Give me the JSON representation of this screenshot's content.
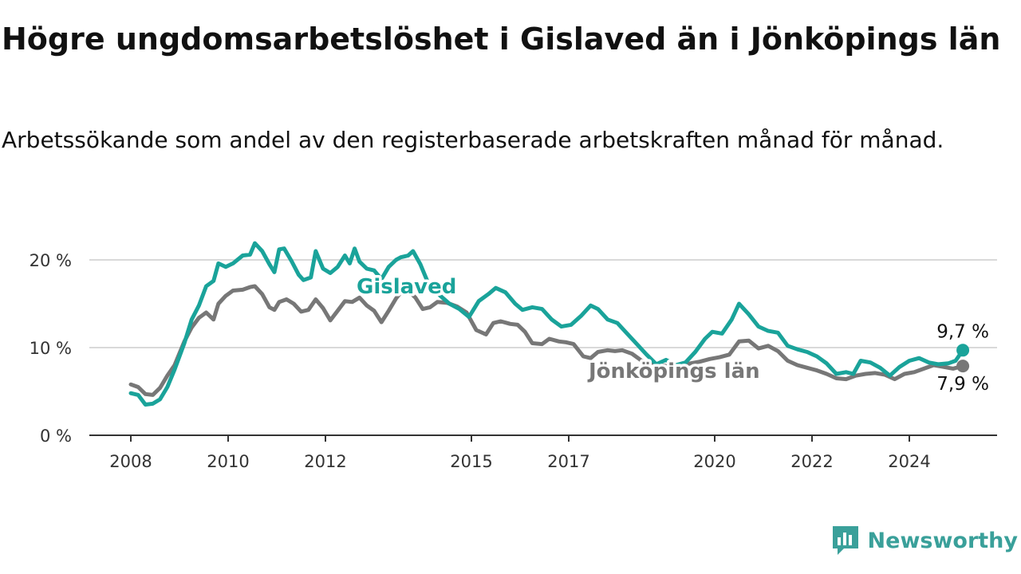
{
  "title": "Högre ungdomsarbetslöshet i Gislaved än i Jönköpings län",
  "subtitle": "Arbetssökande som andel av den registerbaserade arbetskraften månad för månad.",
  "brand": "Newsworthy",
  "colors": {
    "gislaved": "#1aa39a",
    "jonkoping": "#777777",
    "grid": "#d9d9d9",
    "axis": "#333333"
  },
  "chart_data": {
    "type": "line",
    "title": "Högre ungdomsarbetslöshet i Gislaved än i Jönköpings län",
    "subtitle": "Arbetssökande som andel av den registerbaserade arbetskraften månad för månad.",
    "xlabel": "",
    "ylabel": "",
    "ylim": [
      0,
      20
    ],
    "yticks": [
      0,
      10,
      20
    ],
    "ytick_labels": [
      "0 %",
      "10 %",
      "20 %"
    ],
    "xlim": [
      2008,
      2026
    ],
    "xticks": [
      2008,
      2010,
      2012,
      2015,
      2017,
      2020,
      2022,
      2024
    ],
    "xtick_labels": [
      "2008",
      "2010",
      "2012",
      "2015",
      "2017",
      "2020",
      "2022",
      "2024"
    ],
    "grid": true,
    "legend": "inline labels on lines",
    "series": [
      {
        "name": "Gislaved",
        "color": "#1aa39a",
        "end_label": "9,7 %",
        "points": [
          [
            2008.0,
            4.8
          ],
          [
            2008.15,
            4.6
          ],
          [
            2008.3,
            3.5
          ],
          [
            2008.45,
            3.6
          ],
          [
            2008.6,
            4.1
          ],
          [
            2008.75,
            5.5
          ],
          [
            2008.9,
            7.5
          ],
          [
            2009.1,
            10.5
          ],
          [
            2009.25,
            13.2
          ],
          [
            2009.4,
            14.8
          ],
          [
            2009.55,
            17.0
          ],
          [
            2009.7,
            17.6
          ],
          [
            2009.8,
            19.6
          ],
          [
            2009.95,
            19.2
          ],
          [
            2010.1,
            19.6
          ],
          [
            2010.3,
            20.5
          ],
          [
            2010.45,
            20.6
          ],
          [
            2010.55,
            21.9
          ],
          [
            2010.7,
            21.0
          ],
          [
            2010.85,
            19.5
          ],
          [
            2010.95,
            18.6
          ],
          [
            2011.05,
            21.2
          ],
          [
            2011.15,
            21.3
          ],
          [
            2011.3,
            19.9
          ],
          [
            2011.45,
            18.3
          ],
          [
            2011.55,
            17.7
          ],
          [
            2011.7,
            18.0
          ],
          [
            2011.8,
            21.0
          ],
          [
            2011.95,
            19.0
          ],
          [
            2012.1,
            18.5
          ],
          [
            2012.25,
            19.2
          ],
          [
            2012.4,
            20.5
          ],
          [
            2012.5,
            19.6
          ],
          [
            2012.6,
            21.3
          ],
          [
            2012.7,
            19.8
          ],
          [
            2012.85,
            19.0
          ],
          [
            2013.0,
            18.8
          ],
          [
            2013.15,
            17.8
          ],
          [
            2013.3,
            19.2
          ],
          [
            2013.45,
            20.0
          ],
          [
            2013.55,
            20.3
          ],
          [
            2013.7,
            20.5
          ],
          [
            2013.8,
            21.0
          ],
          [
            2013.95,
            19.5
          ],
          [
            2014.1,
            17.5
          ],
          [
            2014.3,
            16.2
          ],
          [
            2014.55,
            15.0
          ],
          [
            2014.75,
            14.4
          ],
          [
            2014.95,
            13.5
          ],
          [
            2015.15,
            15.3
          ],
          [
            2015.35,
            16.1
          ],
          [
            2015.5,
            16.8
          ],
          [
            2015.7,
            16.3
          ],
          [
            2015.9,
            15.0
          ],
          [
            2016.05,
            14.3
          ],
          [
            2016.25,
            14.6
          ],
          [
            2016.45,
            14.4
          ],
          [
            2016.65,
            13.2
          ],
          [
            2016.85,
            12.4
          ],
          [
            2017.05,
            12.6
          ],
          [
            2017.25,
            13.6
          ],
          [
            2017.45,
            14.8
          ],
          [
            2017.6,
            14.4
          ],
          [
            2017.8,
            13.2
          ],
          [
            2018.0,
            12.8
          ],
          [
            2018.2,
            11.6
          ],
          [
            2018.4,
            10.4
          ],
          [
            2018.6,
            9.2
          ],
          [
            2018.8,
            8.1
          ],
          [
            2019.0,
            8.6
          ],
          [
            2019.2,
            8.0
          ],
          [
            2019.4,
            8.3
          ],
          [
            2019.6,
            9.5
          ],
          [
            2019.8,
            11.0
          ],
          [
            2019.95,
            11.8
          ],
          [
            2020.15,
            11.6
          ],
          [
            2020.35,
            13.2
          ],
          [
            2020.5,
            15.0
          ],
          [
            2020.7,
            13.8
          ],
          [
            2020.9,
            12.4
          ],
          [
            2021.1,
            11.9
          ],
          [
            2021.3,
            11.7
          ],
          [
            2021.5,
            10.2
          ],
          [
            2021.7,
            9.8
          ],
          [
            2021.9,
            9.5
          ],
          [
            2022.1,
            9.0
          ],
          [
            2022.3,
            8.2
          ],
          [
            2022.5,
            7.0
          ],
          [
            2022.7,
            7.2
          ],
          [
            2022.85,
            7.0
          ],
          [
            2023.0,
            8.5
          ],
          [
            2023.2,
            8.3
          ],
          [
            2023.4,
            7.7
          ],
          [
            2023.6,
            6.8
          ],
          [
            2023.8,
            7.8
          ],
          [
            2024.0,
            8.5
          ],
          [
            2024.2,
            8.8
          ],
          [
            2024.4,
            8.3
          ],
          [
            2024.6,
            8.1
          ],
          [
            2024.8,
            8.2
          ],
          [
            2024.95,
            8.5
          ],
          [
            2025.1,
            9.7
          ]
        ]
      },
      {
        "name": "Jönköpings län",
        "color": "#777777",
        "end_label": "7,9 %",
        "points": [
          [
            2008.0,
            5.8
          ],
          [
            2008.15,
            5.5
          ],
          [
            2008.3,
            4.7
          ],
          [
            2008.45,
            4.6
          ],
          [
            2008.6,
            5.4
          ],
          [
            2008.75,
            6.8
          ],
          [
            2008.9,
            8.0
          ],
          [
            2009.1,
            10.7
          ],
          [
            2009.25,
            12.3
          ],
          [
            2009.4,
            13.4
          ],
          [
            2009.55,
            14.0
          ],
          [
            2009.7,
            13.2
          ],
          [
            2009.8,
            15.0
          ],
          [
            2009.95,
            15.9
          ],
          [
            2010.1,
            16.5
          ],
          [
            2010.3,
            16.6
          ],
          [
            2010.45,
            16.9
          ],
          [
            2010.55,
            17.0
          ],
          [
            2010.7,
            16.1
          ],
          [
            2010.85,
            14.6
          ],
          [
            2010.95,
            14.3
          ],
          [
            2011.05,
            15.2
          ],
          [
            2011.2,
            15.5
          ],
          [
            2011.35,
            15.0
          ],
          [
            2011.5,
            14.1
          ],
          [
            2011.65,
            14.3
          ],
          [
            2011.8,
            15.5
          ],
          [
            2011.95,
            14.5
          ],
          [
            2012.1,
            13.1
          ],
          [
            2012.25,
            14.2
          ],
          [
            2012.4,
            15.3
          ],
          [
            2012.55,
            15.2
          ],
          [
            2012.7,
            15.7
          ],
          [
            2012.85,
            14.8
          ],
          [
            2013.0,
            14.2
          ],
          [
            2013.15,
            12.9
          ],
          [
            2013.3,
            14.2
          ],
          [
            2013.45,
            15.6
          ],
          [
            2013.55,
            16.3
          ],
          [
            2013.7,
            16.5
          ],
          [
            2013.85,
            15.7
          ],
          [
            2014.0,
            14.4
          ],
          [
            2014.15,
            14.6
          ],
          [
            2014.3,
            15.2
          ],
          [
            2014.5,
            15.1
          ],
          [
            2014.7,
            14.7
          ],
          [
            2014.9,
            14.0
          ],
          [
            2015.1,
            12.0
          ],
          [
            2015.3,
            11.5
          ],
          [
            2015.45,
            12.8
          ],
          [
            2015.6,
            13.0
          ],
          [
            2015.8,
            12.7
          ],
          [
            2015.95,
            12.6
          ],
          [
            2016.1,
            11.8
          ],
          [
            2016.25,
            10.5
          ],
          [
            2016.45,
            10.4
          ],
          [
            2016.6,
            11.0
          ],
          [
            2016.8,
            10.7
          ],
          [
            2016.95,
            10.6
          ],
          [
            2017.1,
            10.4
          ],
          [
            2017.3,
            9.0
          ],
          [
            2017.45,
            8.8
          ],
          [
            2017.6,
            9.5
          ],
          [
            2017.8,
            9.7
          ],
          [
            2017.95,
            9.6
          ],
          [
            2018.1,
            9.7
          ],
          [
            2018.3,
            9.3
          ],
          [
            2018.5,
            8.5
          ],
          [
            2018.7,
            8.3
          ],
          [
            2018.9,
            8.0
          ],
          [
            2019.1,
            7.8
          ],
          [
            2019.3,
            7.9
          ],
          [
            2019.5,
            8.2
          ],
          [
            2019.7,
            8.4
          ],
          [
            2019.9,
            8.7
          ],
          [
            2020.1,
            8.9
          ],
          [
            2020.3,
            9.2
          ],
          [
            2020.5,
            10.7
          ],
          [
            2020.7,
            10.8
          ],
          [
            2020.9,
            9.9
          ],
          [
            2021.1,
            10.2
          ],
          [
            2021.3,
            9.6
          ],
          [
            2021.5,
            8.5
          ],
          [
            2021.7,
            8.0
          ],
          [
            2021.9,
            7.7
          ],
          [
            2022.1,
            7.4
          ],
          [
            2022.3,
            7.0
          ],
          [
            2022.5,
            6.5
          ],
          [
            2022.7,
            6.4
          ],
          [
            2022.9,
            6.8
          ],
          [
            2023.1,
            7.0
          ],
          [
            2023.3,
            7.1
          ],
          [
            2023.5,
            6.9
          ],
          [
            2023.7,
            6.4
          ],
          [
            2023.9,
            7.0
          ],
          [
            2024.1,
            7.2
          ],
          [
            2024.3,
            7.6
          ],
          [
            2024.5,
            8.0
          ],
          [
            2024.7,
            7.8
          ],
          [
            2024.9,
            7.6
          ],
          [
            2025.1,
            7.9
          ]
        ]
      }
    ]
  }
}
